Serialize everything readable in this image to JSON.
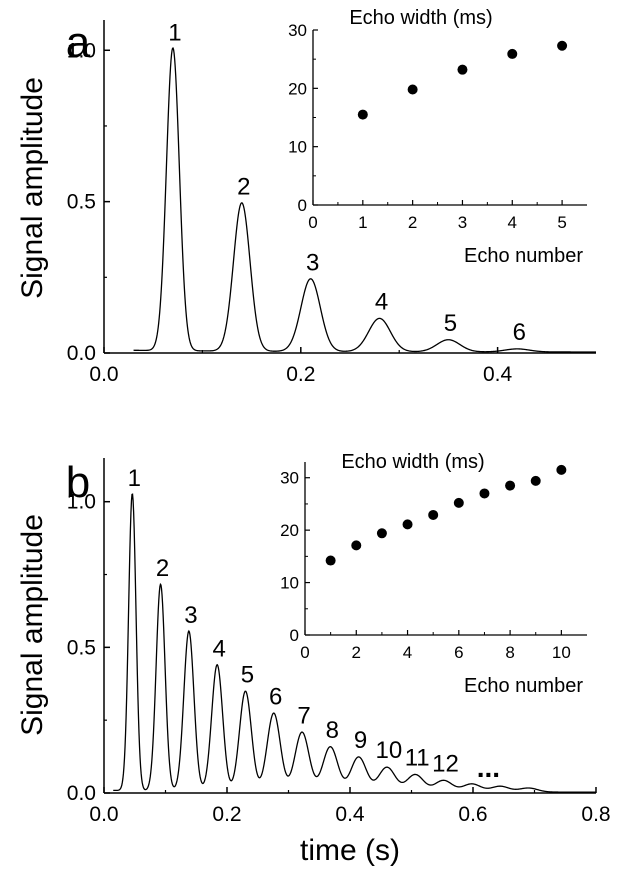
{
  "chart_data": [
    {
      "id": "a",
      "type": "line",
      "panel_label": "a",
      "xlabel": "",
      "ylabel": "Signal amplitude",
      "xlim": [
        0.0,
        0.5
      ],
      "ylim": [
        0.0,
        1.1
      ],
      "xticks": [
        "0.0",
        "0.2",
        "0.4"
      ],
      "yticks": [
        "0.0",
        "0.5",
        "1.0"
      ],
      "echoes": [
        {
          "label": "1",
          "t": 0.07,
          "amp": 1.0,
          "width": 0.0155
        },
        {
          "label": "2",
          "t": 0.14,
          "amp": 0.49,
          "width": 0.0198
        },
        {
          "label": "3",
          "t": 0.21,
          "amp": 0.24,
          "width": 0.0232
        },
        {
          "label": "4",
          "t": 0.28,
          "amp": 0.11,
          "width": 0.0259
        },
        {
          "label": "5",
          "t": 0.35,
          "amp": 0.04,
          "width": 0.0274
        },
        {
          "label": "6",
          "t": 0.42,
          "amp": 0.01,
          "width": 0.029
        }
      ],
      "signal_start": 0.03,
      "inset": {
        "type": "scatter",
        "title": "Echo width (ms)",
        "xlabel": "Echo number",
        "xlim": [
          0,
          5.5
        ],
        "ylim": [
          0,
          30
        ],
        "xticks": [
          "0",
          "1",
          "2",
          "3",
          "4",
          "5"
        ],
        "yticks": [
          "0",
          "10",
          "20",
          "30"
        ],
        "x": [
          1,
          2,
          3,
          4,
          5
        ],
        "y": [
          15.5,
          19.8,
          23.2,
          25.9,
          27.3
        ]
      }
    },
    {
      "id": "b",
      "type": "line",
      "panel_label": "b",
      "xlabel": "time (s)",
      "ylabel": "Signal amplitude",
      "xlim": [
        0.0,
        0.8
      ],
      "ylim": [
        0.0,
        1.15
      ],
      "xticks": [
        "0.0",
        "0.2",
        "0.4",
        "0.6",
        "0.8"
      ],
      "yticks": [
        "0.0",
        "0.5",
        "1.0"
      ],
      "echoes": [
        {
          "label": "1",
          "t": 0.046,
          "amp": 1.02,
          "width": 0.0142
        },
        {
          "label": "2",
          "t": 0.092,
          "amp": 0.71,
          "width": 0.0171
        },
        {
          "label": "3",
          "t": 0.138,
          "amp": 0.55,
          "width": 0.0194
        },
        {
          "label": "4",
          "t": 0.184,
          "amp": 0.435,
          "width": 0.0211
        },
        {
          "label": "5",
          "t": 0.23,
          "amp": 0.345,
          "width": 0.0229
        },
        {
          "label": "6",
          "t": 0.276,
          "amp": 0.27,
          "width": 0.0252
        },
        {
          "label": "7",
          "t": 0.322,
          "amp": 0.205,
          "width": 0.027
        },
        {
          "label": "8",
          "t": 0.368,
          "amp": 0.155,
          "width": 0.0285
        },
        {
          "label": "9",
          "t": 0.414,
          "amp": 0.12,
          "width": 0.0294
        },
        {
          "label": "10",
          "t": 0.46,
          "amp": 0.085,
          "width": 0.0315
        },
        {
          "label": "11",
          "t": 0.506,
          "amp": 0.06,
          "width": 0.032
        },
        {
          "label": "12",
          "t": 0.552,
          "amp": 0.04,
          "width": 0.033
        },
        {
          "label": "",
          "t": 0.598,
          "amp": 0.028,
          "width": 0.034
        },
        {
          "label": "",
          "t": 0.644,
          "amp": 0.02,
          "width": 0.034
        },
        {
          "label": "",
          "t": 0.69,
          "amp": 0.014,
          "width": 0.035
        }
      ],
      "signal_start": 0.015,
      "ellipsis": "...",
      "inset": {
        "type": "scatter",
        "title": "Echo width (ms)",
        "xlabel": "Echo number",
        "xlim": [
          0,
          11
        ],
        "ylim": [
          0,
          33
        ],
        "xticks": [
          "0",
          "2",
          "4",
          "6",
          "8",
          "10"
        ],
        "yticks": [
          "0",
          "10",
          "20",
          "30"
        ],
        "x": [
          1,
          2,
          3,
          4,
          5,
          6,
          7,
          8,
          9,
          10
        ],
        "y": [
          14.2,
          17.1,
          19.4,
          21.1,
          22.9,
          25.2,
          27.0,
          28.5,
          29.4,
          31.5
        ]
      }
    }
  ]
}
